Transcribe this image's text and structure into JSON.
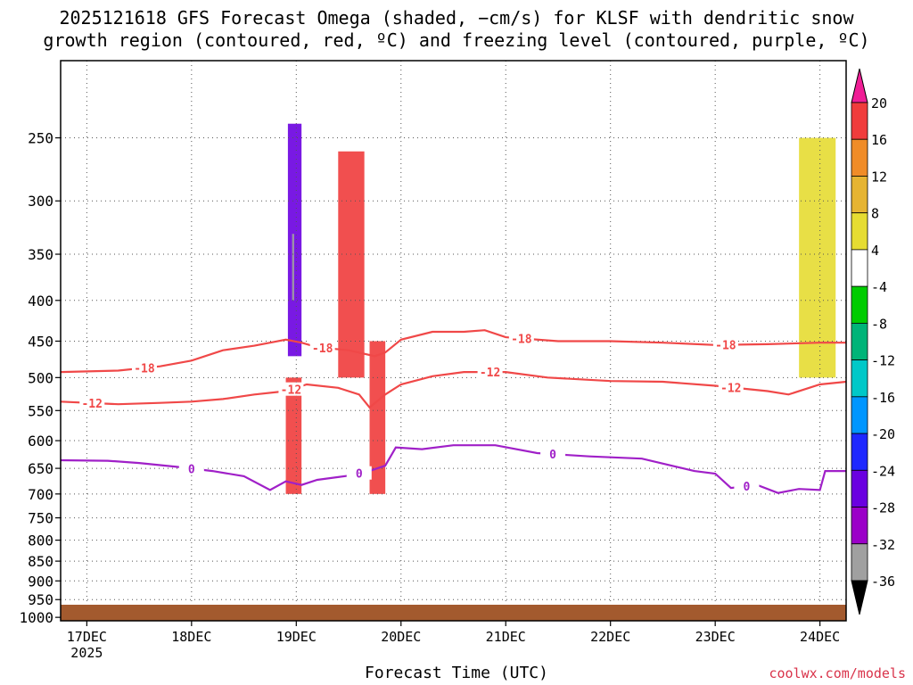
{
  "title_line1": "2025121618 GFS Forecast Omega (shaded, −cm/s) for KLSF with dendritic snow",
  "title_line2": "growth region (contoured, red, ºC) and freezing level (contoured, purple, ºC)",
  "credit": "coolwx.com/models",
  "chart_data": {
    "type": "heatmap",
    "xlabel": "Forecast Time (UTC)",
    "ylabel": "",
    "y_scale": "log-pressure (hPa, inverted)",
    "ylim": [
      1010,
      200
    ],
    "xlim": [
      -0.25,
      7.25
    ],
    "x_units": "days since 17DEC 2025 00Z",
    "x_ticks": [
      {
        "value": 0,
        "label": "17DEC",
        "sublabel": "2025"
      },
      {
        "value": 1,
        "label": "18DEC"
      },
      {
        "value": 2,
        "label": "19DEC"
      },
      {
        "value": 3,
        "label": "20DEC"
      },
      {
        "value": 4,
        "label": "21DEC"
      },
      {
        "value": 5,
        "label": "22DEC"
      },
      {
        "value": 6,
        "label": "23DEC"
      },
      {
        "value": 7,
        "label": "24DEC"
      }
    ],
    "y_ticks": [
      250,
      300,
      350,
      400,
      450,
      500,
      550,
      600,
      650,
      700,
      750,
      800,
      850,
      900,
      950,
      1000
    ],
    "grid": true,
    "colorbar": {
      "levels": [
        -36,
        -32,
        -28,
        -24,
        -20,
        -16,
        -12,
        -8,
        -4,
        4,
        8,
        12,
        16,
        20
      ],
      "colors": [
        "#000000",
        "#a0a0a0",
        "#9b00c8",
        "#6a00e0",
        "#1e28ff",
        "#0096ff",
        "#00c8c8",
        "#00b478",
        "#00cc00",
        "#ffffff",
        "#e6dc32",
        "#e6b432",
        "#f08c28",
        "#f03c3c",
        "#f01e96"
      ],
      "tick_labels": [
        "20",
        "16",
        "12",
        "8",
        "4",
        "-4",
        "-8",
        "-12",
        "-16",
        "-20",
        "-24",
        "-28",
        "-32",
        "-36"
      ]
    },
    "contours": [
      {
        "name": "dendritic -18",
        "color": "#f04848",
        "label": "-18",
        "points": [
          [
            -0.25,
            492
          ],
          [
            0.3,
            490
          ],
          [
            0.7,
            484
          ],
          [
            1.0,
            476
          ],
          [
            1.3,
            462
          ],
          [
            1.6,
            456
          ],
          [
            1.9,
            448
          ],
          [
            2.05,
            452
          ],
          [
            2.2,
            458
          ],
          [
            2.5,
            462
          ],
          [
            2.75,
            470
          ],
          [
            2.85,
            465
          ],
          [
            3.0,
            448
          ],
          [
            3.3,
            438
          ],
          [
            3.6,
            438
          ],
          [
            3.8,
            436
          ],
          [
            4.0,
            445
          ],
          [
            4.5,
            450
          ],
          [
            5.0,
            450
          ],
          [
            5.5,
            452
          ],
          [
            6.0,
            455
          ],
          [
            6.5,
            454
          ],
          [
            7.0,
            452
          ],
          [
            7.25,
            452
          ]
        ],
        "labels_at": [
          0.55,
          2.25,
          4.15,
          6.1
        ]
      },
      {
        "name": "dendritic -12",
        "color": "#f04848",
        "label": "-12",
        "points": [
          [
            -0.25,
            536
          ],
          [
            0.3,
            540
          ],
          [
            0.7,
            538
          ],
          [
            1.0,
            536
          ],
          [
            1.3,
            532
          ],
          [
            1.6,
            525
          ],
          [
            1.9,
            520
          ],
          [
            2.1,
            510
          ],
          [
            2.4,
            515
          ],
          [
            2.6,
            525
          ],
          [
            2.7,
            545
          ],
          [
            2.85,
            525
          ],
          [
            3.0,
            510
          ],
          [
            3.3,
            498
          ],
          [
            3.6,
            492
          ],
          [
            4.0,
            492
          ],
          [
            4.4,
            500
          ],
          [
            5.0,
            505
          ],
          [
            5.5,
            506
          ],
          [
            6.0,
            512
          ],
          [
            6.5,
            520
          ],
          [
            6.7,
            525
          ],
          [
            7.0,
            510
          ],
          [
            7.25,
            506
          ]
        ],
        "labels_at": [
          0.05,
          1.95,
          3.85,
          6.15
        ]
      },
      {
        "name": "freezing level 0",
        "color": "#a020c8",
        "label": "0",
        "points": [
          [
            -0.25,
            635
          ],
          [
            0.2,
            636
          ],
          [
            0.5,
            640
          ],
          [
            0.9,
            648
          ],
          [
            1.2,
            655
          ],
          [
            1.5,
            665
          ],
          [
            1.75,
            692
          ],
          [
            1.9,
            675
          ],
          [
            2.05,
            682
          ],
          [
            2.2,
            672
          ],
          [
            2.5,
            664
          ],
          [
            2.7,
            655
          ],
          [
            2.85,
            645
          ],
          [
            2.95,
            612
          ],
          [
            3.2,
            615
          ],
          [
            3.5,
            608
          ],
          [
            3.9,
            608
          ],
          [
            4.3,
            622
          ],
          [
            4.8,
            628
          ],
          [
            5.3,
            632
          ],
          [
            5.8,
            655
          ],
          [
            6.0,
            660
          ],
          [
            6.15,
            688
          ],
          [
            6.4,
            682
          ],
          [
            6.6,
            698
          ],
          [
            6.8,
            690
          ],
          [
            7.0,
            692
          ],
          [
            7.05,
            655
          ],
          [
            7.25,
            655
          ]
        ],
        "labels_at": [
          1.0,
          2.6,
          4.45,
          6.3
        ]
      }
    ],
    "shaded_features": [
      {
        "omega": -28,
        "x": [
          1.92,
          2.05
        ],
        "p": [
          240,
          470
        ]
      },
      {
        "omega": -36,
        "x": [
          1.96,
          1.98
        ],
        "p": [
          330,
          400
        ]
      },
      {
        "omega": 16,
        "x": [
          1.9,
          2.05
        ],
        "p": [
          500,
          700
        ]
      },
      {
        "omega": 16,
        "x": [
          2.4,
          2.65
        ],
        "p": [
          260,
          500
        ]
      },
      {
        "omega": 16,
        "x": [
          2.7,
          2.85
        ],
        "p": [
          450,
          700
        ]
      },
      {
        "omega": 4,
        "x": [
          6.8,
          7.15
        ],
        "p": [
          250,
          500
        ]
      }
    ],
    "ground_pressure": 1000
  }
}
